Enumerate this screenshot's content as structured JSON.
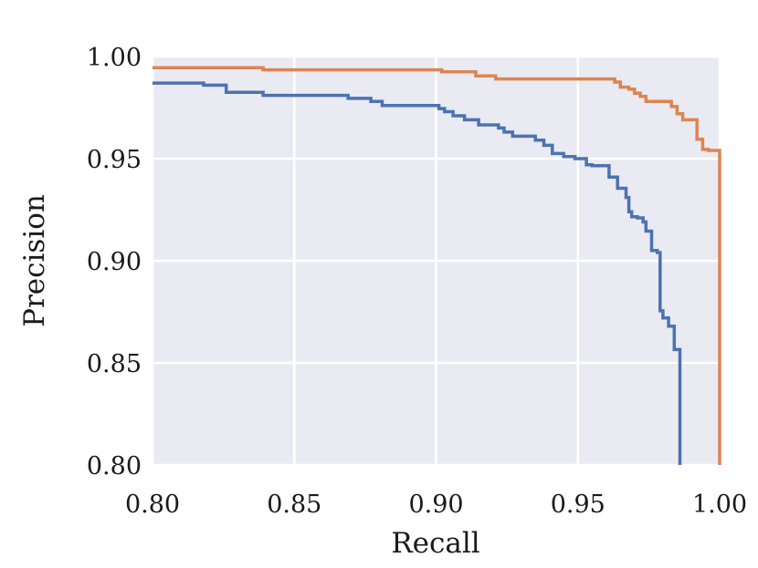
{
  "chart_data": {
    "type": "line",
    "title": "",
    "xlabel": "Recall",
    "ylabel": "Precision",
    "xlim": [
      0.8,
      1.0
    ],
    "ylim": [
      0.8,
      1.0
    ],
    "xticks": [
      "0.80",
      "0.85",
      "0.90",
      "0.95",
      "1.00"
    ],
    "yticks": [
      "0.80",
      "0.85",
      "0.90",
      "0.95",
      "1.00"
    ],
    "grid": true,
    "background_color": "#eaeaf2",
    "grid_color": "#ffffff",
    "series": [
      {
        "color": "#4c72b0",
        "x": [
          0.8,
          0.818,
          0.818,
          0.826,
          0.826,
          0.839,
          0.839,
          0.869,
          0.869,
          0.877,
          0.877,
          0.881,
          0.881,
          0.901,
          0.901,
          0.903,
          0.903,
          0.906,
          0.906,
          0.91,
          0.91,
          0.915,
          0.915,
          0.922,
          0.922,
          0.924,
          0.924,
          0.927,
          0.927,
          0.935,
          0.935,
          0.938,
          0.938,
          0.941,
          0.941,
          0.945,
          0.945,
          0.949,
          0.949,
          0.953,
          0.953,
          0.955,
          0.955,
          0.961,
          0.961,
          0.964,
          0.964,
          0.967,
          0.967,
          0.968,
          0.968,
          0.969,
          0.969,
          0.971,
          0.971,
          0.973,
          0.973,
          0.974,
          0.974,
          0.976,
          0.976,
          0.978,
          0.978,
          0.979,
          0.979,
          0.98,
          0.98,
          0.982,
          0.982,
          0.984,
          0.984,
          0.986,
          0.986
        ],
        "y": [
          0.987,
          0.987,
          0.986,
          0.986,
          0.9825,
          0.9825,
          0.981,
          0.981,
          0.9795,
          0.9795,
          0.978,
          0.978,
          0.976,
          0.976,
          0.9745,
          0.9745,
          0.973,
          0.973,
          0.971,
          0.971,
          0.969,
          0.969,
          0.9665,
          0.9665,
          0.965,
          0.965,
          0.963,
          0.963,
          0.961,
          0.961,
          0.959,
          0.959,
          0.9565,
          0.9565,
          0.9525,
          0.9525,
          0.951,
          0.951,
          0.95,
          0.95,
          0.947,
          0.947,
          0.9465,
          0.9465,
          0.941,
          0.941,
          0.9355,
          0.9355,
          0.931,
          0.931,
          0.924,
          0.924,
          0.9215,
          0.9215,
          0.921,
          0.921,
          0.919,
          0.919,
          0.9145,
          0.9145,
          0.905,
          0.905,
          0.904,
          0.904,
          0.8755,
          0.8755,
          0.872,
          0.872,
          0.868,
          0.868,
          0.8565,
          0.8565,
          0.8
        ]
      },
      {
        "color": "#dd8452",
        "x": [
          0.8,
          0.839,
          0.839,
          0.902,
          0.902,
          0.914,
          0.914,
          0.921,
          0.921,
          0.963,
          0.963,
          0.965,
          0.965,
          0.968,
          0.968,
          0.97,
          0.97,
          0.972,
          0.972,
          0.974,
          0.974,
          0.983,
          0.983,
          0.985,
          0.985,
          0.987,
          0.987,
          0.989,
          0.989,
          0.992,
          0.992,
          0.994,
          0.994,
          0.996,
          0.996,
          1.0,
          1.0
        ],
        "y": [
          0.9945,
          0.9945,
          0.9935,
          0.9935,
          0.9925,
          0.9925,
          0.9905,
          0.9905,
          0.989,
          0.989,
          0.9875,
          0.9875,
          0.985,
          0.985,
          0.984,
          0.984,
          0.982,
          0.982,
          0.9805,
          0.9805,
          0.978,
          0.978,
          0.9755,
          0.9755,
          0.972,
          0.972,
          0.969,
          0.969,
          0.969,
          0.969,
          0.9595,
          0.9595,
          0.9545,
          0.9545,
          0.954,
          0.954,
          0.8
        ]
      }
    ]
  }
}
